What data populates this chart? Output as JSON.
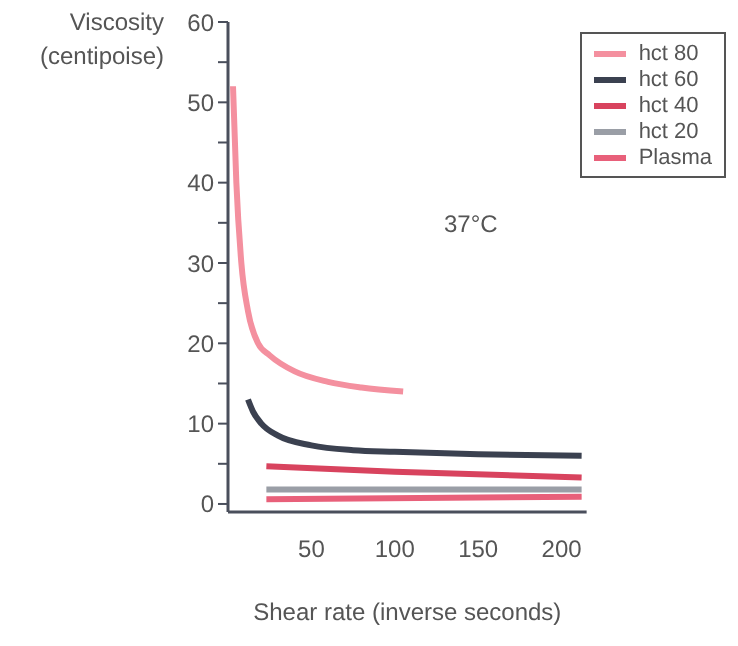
{
  "chart_data": {
    "type": "line",
    "xlabel": "Shear rate (inverse seconds)",
    "ylabel": "Viscosity (centipoise)",
    "annotations": [
      "37°C"
    ],
    "xlim": [
      0,
      215
    ],
    "xticks": [
      50,
      100,
      150,
      200
    ],
    "ylim": [
      -1,
      60
    ],
    "yticks": [
      0,
      {
        "value": 5,
        "label": null
      },
      10,
      {
        "value": 15,
        "label": null
      },
      20,
      {
        "value": 25,
        "label": null
      },
      30,
      {
        "value": 35,
        "label": null
      },
      40,
      {
        "value": 45,
        "label": null
      },
      50,
      {
        "value": 55,
        "label": null
      },
      60
    ],
    "grid": false,
    "legend": "top right",
    "marker": "none",
    "line_style": "solid",
    "series": [
      {
        "name": "hct 80",
        "color": "#f4909f",
        "x": [
          3,
          5,
          8,
          12,
          18,
          25,
          40,
          60,
          80,
          105
        ],
        "values": [
          52,
          40,
          30,
          24,
          20,
          18.5,
          16.5,
          15.2,
          14.5,
          14
        ]
      },
      {
        "name": "hct 60",
        "color": "#3b4150",
        "x": [
          12,
          15,
          20,
          30,
          50,
          75,
          100,
          150,
          212
        ],
        "values": [
          13,
          11.5,
          10,
          8.5,
          7.3,
          6.7,
          6.5,
          6.2,
          6
        ]
      },
      {
        "name": "hct 40",
        "color": "#d8435e",
        "x": [
          23,
          100,
          212
        ],
        "values": [
          4.7,
          4,
          3.3
        ]
      },
      {
        "name": "hct 20",
        "color": "#9a9ea6",
        "x": [
          23,
          212
        ],
        "values": [
          1.8,
          1.8
        ]
      },
      {
        "name": "Plasma",
        "color": "#e8607a",
        "x": [
          23,
          212
        ],
        "values": [
          0.6,
          0.9
        ]
      }
    ]
  }
}
